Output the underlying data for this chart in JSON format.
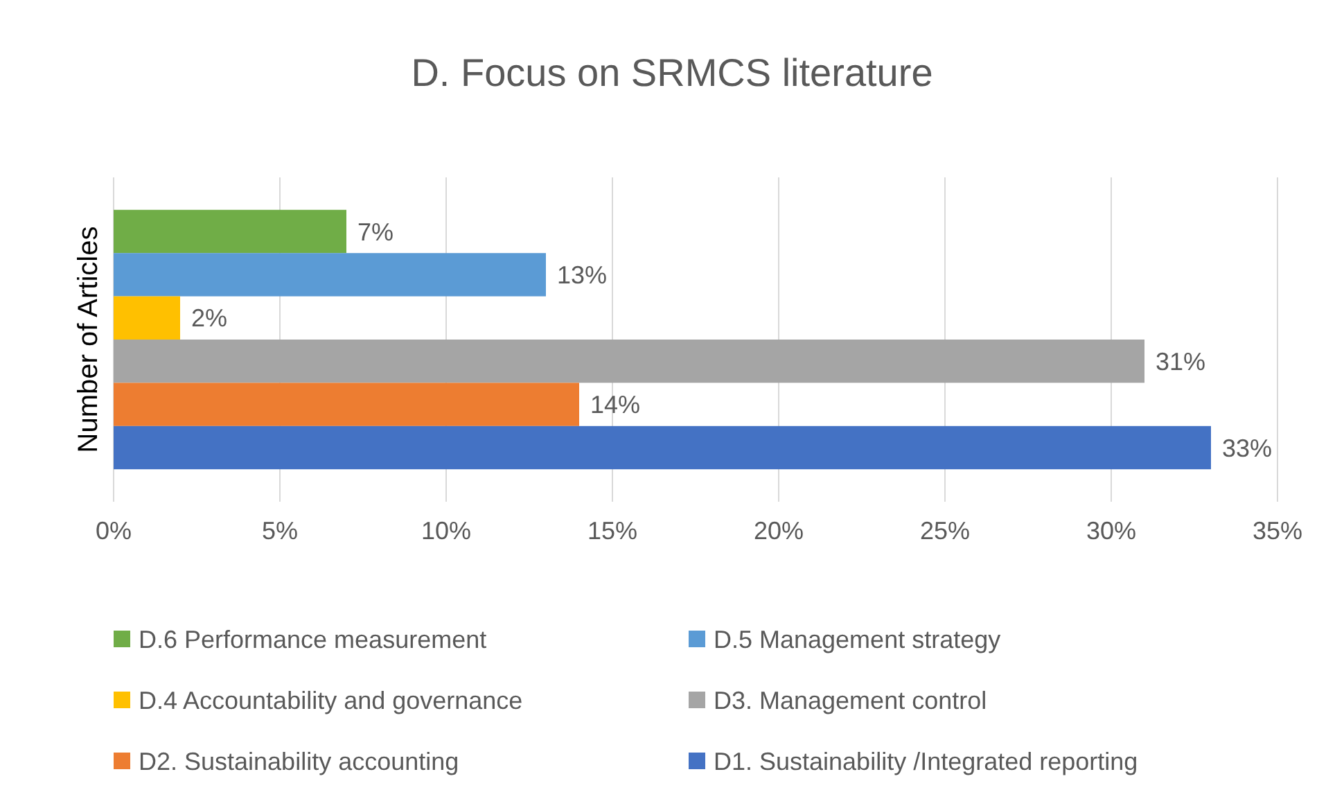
{
  "chart_data": {
    "type": "bar",
    "title": "D. Focus on SRMCS literature",
    "ylabel": "Number of Articles",
    "orientation": "horizontal",
    "categories": [
      null
    ],
    "series": [
      {
        "name": "D.6 Performance measurement",
        "color": "#70ad47",
        "values": [
          7
        ],
        "value_labels": [
          "7%"
        ]
      },
      {
        "name": "D.5 Management strategy",
        "color": "#5b9bd5",
        "values": [
          13
        ],
        "value_labels": [
          "13%"
        ]
      },
      {
        "name": "D.4 Accountability and governance",
        "color": "#ffc000",
        "values": [
          2
        ],
        "value_labels": [
          "2%"
        ]
      },
      {
        "name": "D3. Management control",
        "color": "#a5a5a5",
        "values": [
          31
        ],
        "value_labels": [
          "31%"
        ]
      },
      {
        "name": "D2. Sustainability accounting",
        "color": "#ed7d31",
        "values": [
          14
        ],
        "value_labels": [
          "14%"
        ]
      },
      {
        "name": "D1. Sustainability /Integrated reporting",
        "color": "#4472c4",
        "values": [
          33
        ],
        "value_labels": [
          "33%"
        ]
      }
    ],
    "xlim": [
      0,
      35
    ],
    "xticks": [
      {
        "value": 0,
        "label": "0%"
      },
      {
        "value": 5,
        "label": "5%"
      },
      {
        "value": 10,
        "label": "10%"
      },
      {
        "value": 15,
        "label": "15%"
      },
      {
        "value": 20,
        "label": "20%"
      },
      {
        "value": 25,
        "label": "25%"
      },
      {
        "value": 30,
        "label": "30%"
      },
      {
        "value": 35,
        "label": "35%"
      }
    ],
    "grid": "x",
    "legend": "bottom"
  }
}
